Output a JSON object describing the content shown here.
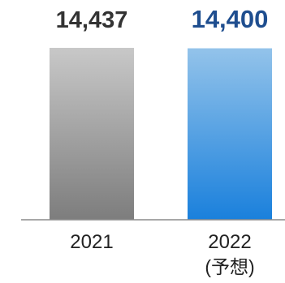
{
  "chart_data": {
    "type": "bar",
    "categories": [
      "2021",
      "2022"
    ],
    "category_sublabels": [
      "",
      "(予想)"
    ],
    "values": [
      14437,
      14400
    ],
    "value_labels": [
      "14,437",
      "14,400"
    ],
    "value_label_colors": [
      "#333333",
      "#1f4e8f"
    ],
    "bar_colors": [
      {
        "top": "#c8c8c8",
        "bottom": "#7d7d7d"
      },
      {
        "top": "#93c3ea",
        "bottom": "#1a80dc"
      }
    ],
    "title": "",
    "xlabel": "",
    "ylabel": "",
    "grid": false,
    "legend": "none"
  }
}
